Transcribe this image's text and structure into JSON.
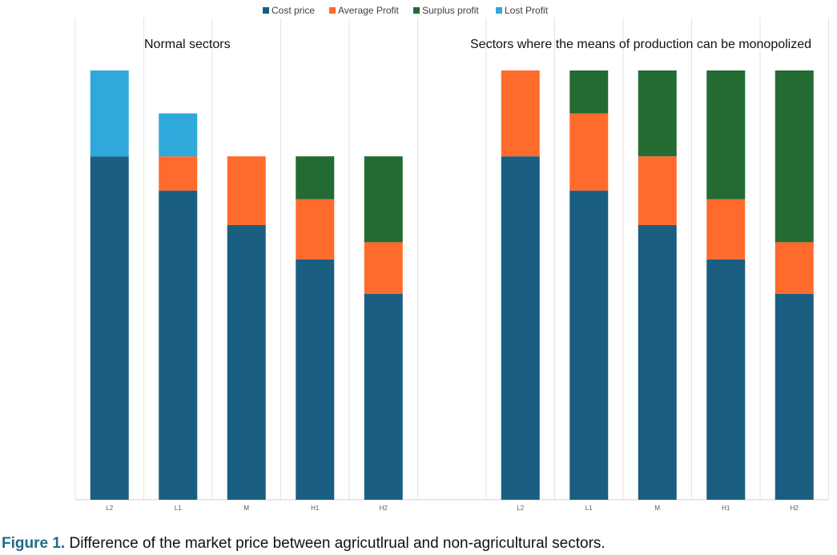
{
  "chart_data": {
    "type": "bar",
    "stacked": true,
    "ylim": [
      0,
      100
    ],
    "colors": {
      "Cost price": "#1a5e82",
      "Average Profit": "#ff6b2d",
      "Surplus profit": "#236b33",
      "Lost Profit": "#2fa8dc"
    },
    "legend": [
      "Cost price",
      "Average Profit",
      "Surplus profit",
      "Lost Profit"
    ],
    "groups": [
      {
        "title": "Normal sectors",
        "categories": [
          "L2",
          "L1",
          "M",
          "H1",
          "H2"
        ],
        "series": [
          {
            "name": "Cost price",
            "values": [
              80,
              72,
              64,
              56,
              48
            ]
          },
          {
            "name": "Average Profit",
            "values": [
              0,
              8,
              16,
              14,
              12
            ]
          },
          {
            "name": "Surplus profit",
            "values": [
              0,
              0,
              0,
              10,
              20
            ]
          },
          {
            "name": "Lost Profit",
            "values": [
              20,
              10,
              0,
              0,
              0
            ]
          }
        ]
      },
      {
        "title": "Sectors where the means of production can be monopolized",
        "categories": [
          "L2",
          "L1",
          "M",
          "H1",
          "H2"
        ],
        "series": [
          {
            "name": "Cost price",
            "values": [
              80,
              72,
              64,
              56,
              48
            ]
          },
          {
            "name": "Average Profit",
            "values": [
              20,
              18,
              16,
              14,
              12
            ]
          },
          {
            "name": "Surplus profit",
            "values": [
              0,
              10,
              20,
              30,
              40
            ]
          },
          {
            "name": "Lost Profit",
            "values": [
              0,
              0,
              0,
              0,
              0
            ]
          }
        ]
      }
    ]
  },
  "caption": {
    "label": "Figure 1.",
    "text": " Difference of the market price between agricutlrual and non-agricultural sectors."
  }
}
